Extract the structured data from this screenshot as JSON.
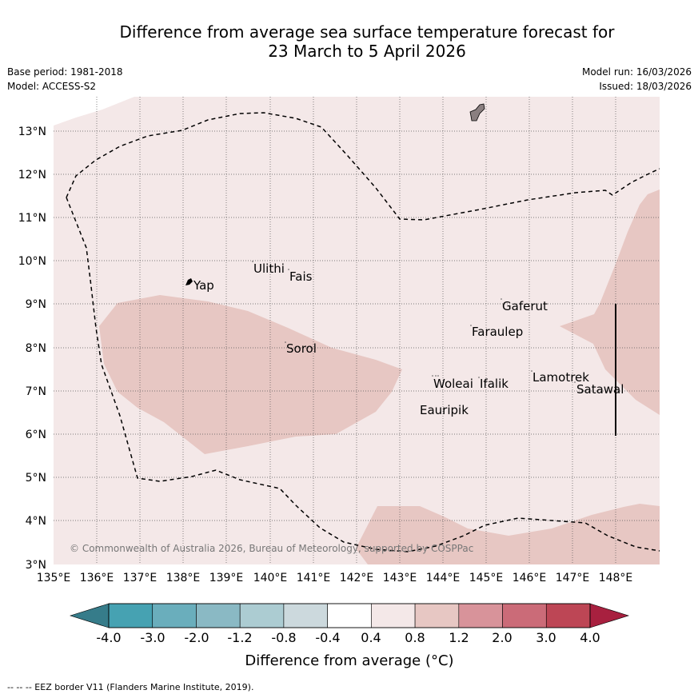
{
  "title": {
    "line1": "Difference from average sea surface temperature forecast for",
    "line2": "23 March to 5 April 2026"
  },
  "meta": {
    "base_period": "Base period: 1981-2018",
    "model": "Model: ACCESS-S2",
    "model_run": "Model run: 16/03/2026",
    "issued": "Issued: 18/03/2026"
  },
  "map": {
    "lat_labels": [
      "13°N",
      "12°N",
      "11°N",
      "10°N",
      "9°N",
      "8°N",
      "7°N",
      "6°N",
      "5°N",
      "4°N",
      "3°N"
    ],
    "lon_labels": [
      "135°E",
      "136°E",
      "137°E",
      "138°E",
      "139°E",
      "140°E",
      "141°E",
      "142°E",
      "143°E",
      "144°E",
      "145°E",
      "146°E",
      "147°E",
      "148°E"
    ],
    "places": [
      {
        "name": "Ulithi",
        "lon": 139.72,
        "lat": 9.86
      },
      {
        "name": "Fais",
        "lon": 140.52,
        "lat": 9.76
      },
      {
        "name": "Yap",
        "lon": 138.13,
        "lat": 9.52
      },
      {
        "name": "Gaferut",
        "lon": 145.38,
        "lat": 9.23
      },
      {
        "name": "Faraulep",
        "lon": 144.6,
        "lat": 8.6
      },
      {
        "name": "Sorol",
        "lon": 140.39,
        "lat": 8.14
      },
      {
        "name": "Lamotrek",
        "lon": 146.0,
        "lat": 7.5
      },
      {
        "name": "Woleai",
        "lon": 143.91,
        "lat": 7.37
      },
      {
        "name": "Ifalik",
        "lon": 144.44,
        "lat": 7.25
      },
      {
        "name": "Satawal",
        "lon": 147.03,
        "lat": 7.35
      },
      {
        "name": "Eauripik",
        "lon": 143.04,
        "lat": 6.7
      }
    ],
    "copyright": "© Commonwealth of Australia 2026, Bureau of Meteorology, supported by COSPPac",
    "colors": {
      "band_0_4_0_8": "#f4e8e8",
      "band_0_8_1_2": "#e7c7c3",
      "land": "#8a7f80"
    }
  },
  "colorbar": {
    "ticks": [
      "-4.0",
      "-3.0",
      "-2.0",
      "-1.2",
      "-0.8",
      "-0.4",
      "0.4",
      "0.8",
      "1.2",
      "2.0",
      "3.0",
      "4.0"
    ],
    "colors": [
      "#46a2b2",
      "#6aaebc",
      "#8ab9c4",
      "#acccd2",
      "#ccd9dd",
      "#ffffff",
      "#f4e8e8",
      "#e7c7c3",
      "#d8939a",
      "#cb6b78",
      "#bd4655"
    ],
    "under_color": "#367c8a",
    "over_color": "#a8203f",
    "label": "Difference from average (°C)"
  },
  "footer": "--  --  -- EEZ border V11 (Flanders Marine Institute, 2019)."
}
